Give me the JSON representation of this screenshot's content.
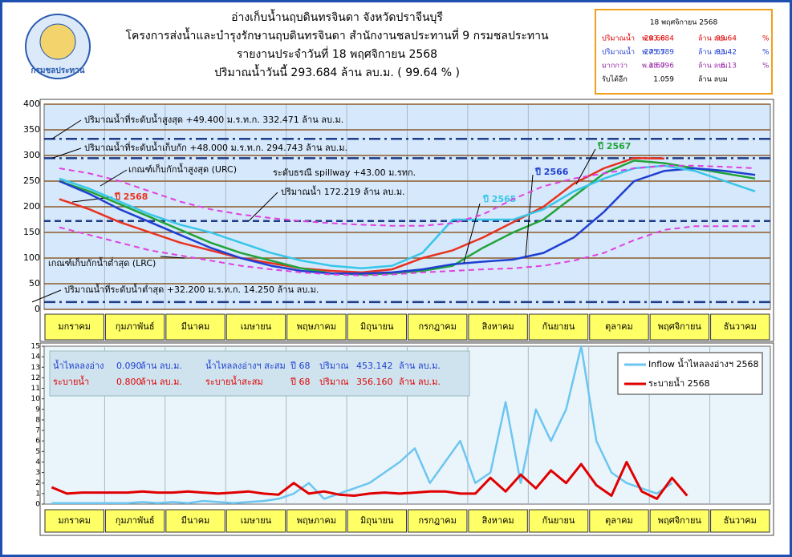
{
  "header": {
    "logo_text": "กรมชลประทาน",
    "title": "อ่างเก็บน้ำนฤบดินทรจินดา จังหวัดปราจีนบุรี",
    "subtitle": "โครงการส่งน้ำและบำรุงรักษานฤบดินทรจินดา สำนักงานชลประทานที่ 9 กรมชลประทาน",
    "report_date": "รายงานประจำวันที่    18 พฤศจิกายน 2568",
    "today_volume": "ปริมาณน้ำวันนี้    293.684  ล้าน ลบ.ม.  ( 99.64 % )"
  },
  "info_box": {
    "date": "18 พฤศจิกายน 2568",
    "rows": [
      [
        "ปริมาณน้ำ",
        "พ.ศ.68",
        "293.684",
        "ล้าน ลบม",
        "99.64",
        "%"
      ],
      [
        "ปริมาณน้ำ",
        "พ.ศ.67",
        "275.589",
        "ล้าน ลบม",
        "93.42",
        "%"
      ],
      [
        "มากกว่า",
        "พ.ศ.67",
        "18.096",
        "ล้าน ลบม",
        "6.13",
        "%"
      ],
      [
        "รับได้อีก",
        "",
        "1.059",
        "ล้าน ลบม",
        "",
        ""
      ]
    ],
    "row_colors": [
      "#e00000",
      "#1f3fd1",
      "#9a2aa8",
      "#000000"
    ]
  },
  "chart_data": [
    {
      "type": "line",
      "categories": [
        "มกราคม",
        null,
        "กุมภาพันธ์",
        null,
        "มีนาคม",
        null,
        "เมษายน",
        null,
        "พฤษภาคม",
        null,
        "มิถุนายน",
        null,
        "กรกฎาคม",
        null,
        "สิงหาคม",
        null,
        "กันยายน",
        null,
        "ตุลาคม",
        null,
        "พฤศจิกายน",
        null,
        "ธันวาคม",
        null
      ],
      "ylim": [
        0,
        400
      ],
      "yticks": [
        0,
        50,
        100,
        150,
        200,
        250,
        300,
        350,
        400
      ],
      "grid": true,
      "grid_color": "#8b5a2b",
      "series": [
        {
          "name": "ปี 2568",
          "color": "#e8321e",
          "values": [
            215,
            195,
            170,
            150,
            130,
            115,
            100,
            90,
            80,
            75,
            72,
            78,
            100,
            115,
            140,
            170,
            200,
            245,
            275,
            295,
            294,
            null,
            null,
            null
          ]
        },
        {
          "name": "ปี 2567",
          "color": "#22a33a",
          "values": [
            250,
            230,
            205,
            180,
            155,
            130,
            110,
            95,
            80,
            70,
            68,
            70,
            75,
            85,
            120,
            150,
            175,
            220,
            265,
            290,
            285,
            275,
            265,
            255
          ]
        },
        {
          "name": "ปี 2566",
          "color": "#1f3fd1",
          "values": [
            250,
            225,
            195,
            170,
            145,
            120,
            100,
            85,
            75,
            70,
            70,
            72,
            78,
            88,
            93,
            97,
            110,
            140,
            190,
            250,
            270,
            275,
            270,
            262
          ]
        },
        {
          "name": "ปี 2565",
          "color": "#37c6e8",
          "values": [
            255,
            235,
            210,
            185,
            165,
            150,
            130,
            110,
            95,
            85,
            80,
            85,
            110,
            175,
            175,
            175,
            195,
            230,
            255,
            275,
            280,
            270,
            250,
            230
          ]
        },
        {
          "name": "เกณฑ์เก็บกักน้ำสูงสุด (URC)",
          "color": "#e040e0",
          "dashed": true,
          "values": [
            275,
            265,
            250,
            230,
            210,
            195,
            185,
            178,
            172,
            168,
            165,
            163,
            163,
            168,
            185,
            215,
            240,
            255,
            265,
            275,
            280,
            280,
            278,
            275
          ]
        },
        {
          "name": "เกณฑ์เก็บกักน้ำต่ำสุด (LRC)",
          "color": "#e040e0",
          "dashed": true,
          "values": [
            160,
            145,
            130,
            115,
            105,
            95,
            85,
            78,
            72,
            68,
            66,
            68,
            72,
            75,
            78,
            80,
            85,
            95,
            110,
            135,
            155,
            162,
            162,
            162
          ]
        }
      ],
      "reference_lines": [
        {
          "value": 332.471,
          "label": "ปริมาณน้ำที่ระดับน้ำสูงสุด +49.400 ม.ร.ท.ก. 332.471 ล้าน ลบ.ม.",
          "style": "dashdot"
        },
        {
          "value": 294.743,
          "label": "ปริมาณน้ำที่ระดับน้ำเก็บกัก +48.000 ม.ร.ท.ก. 294.743 ล้าน ลบ.ม.",
          "style": "dashdot"
        },
        {
          "value": 172.219,
          "label": "ปริมาณน้ำ 172.219 ล้าน ลบ.ม.",
          "style": "dashed"
        },
        {
          "value": 14.25,
          "label": "ปริมาณน้ำที่ระดับน้ำต่ำสุด +32.200 ม.ร.ท.ก. 14.250 ล้าน ลบ.ม.",
          "style": "dashdot"
        }
      ],
      "ref_color": "#1f3c88",
      "annotations": [
        "ระดับธรณี spillway +43.00 ม.รทก."
      ]
    },
    {
      "type": "line",
      "categories": [
        "มกราคม",
        null,
        null,
        null,
        "กุมภาพันธ์",
        null,
        null,
        null,
        "มีนาคม",
        null,
        null,
        null,
        "เมษายน",
        null,
        null,
        null,
        "พฤษภาคม",
        null,
        null,
        null,
        "มิถุนายน",
        null,
        null,
        null,
        "กรกฎาคม",
        null,
        null,
        null,
        "สิงหาคม",
        null,
        null,
        null,
        "กันยายน",
        null,
        null,
        null,
        "ตุลาคม",
        null,
        null,
        null,
        "พฤศจิกายน",
        null,
        null,
        null,
        "ธันวาคม",
        null,
        null,
        null
      ],
      "ylim": [
        0,
        15
      ],
      "yticks": [
        0,
        1,
        2,
        3,
        4,
        5,
        6,
        7,
        8,
        9,
        10,
        11,
        12,
        13,
        14,
        15
      ],
      "grid": false,
      "legend": "upper right",
      "series": [
        {
          "name": "Inflow น้ำไหลลงอ่างฯ 2568",
          "color": "#6cc6f0",
          "width": 2.5,
          "values": [
            0.1,
            0.1,
            0.1,
            0.1,
            0.1,
            0.1,
            0.2,
            0.1,
            0.2,
            0.1,
            0.3,
            0.2,
            0.1,
            0.2,
            0.3,
            0.5,
            1,
            2,
            0.5,
            1,
            1.5,
            2,
            3,
            4,
            5.3,
            2,
            4,
            6,
            2,
            3,
            9.7,
            2,
            9,
            6,
            9,
            15,
            6,
            3,
            2,
            1.5,
            1,
            2,
            null,
            null,
            null,
            null,
            null,
            null
          ]
        },
        {
          "name": "ระบายน้ำ 2568",
          "color": "#e00000",
          "width": 3,
          "values": [
            1.6,
            1,
            1.1,
            1.1,
            1.1,
            1.1,
            1.2,
            1.1,
            1.1,
            1.2,
            1.1,
            1,
            1.1,
            1.2,
            1,
            0.9,
            2,
            1,
            1.2,
            0.9,
            0.8,
            1,
            1.1,
            1,
            1.1,
            1.2,
            1.2,
            1,
            1,
            2.5,
            1.2,
            2.8,
            1.5,
            3.2,
            2,
            3.8,
            1.8,
            0.8,
            4,
            1.2,
            0.5,
            2.5,
            0.8,
            null,
            null,
            null,
            null,
            null
          ]
        }
      ],
      "summary": [
        [
          "น้ำไหลลงอ่าง",
          "0.090",
          "ล้าน ลบ.ม.",
          "น้ำไหลลงอ่างฯ สะสม",
          "ปี 68",
          "ปริมาณ",
          "453.142",
          "ล้าน ลบ.ม."
        ],
        [
          "ระบายน้ำ",
          "0.800",
          "ล้าน ลบ.ม.",
          "ระบายน้ำสะสม",
          "ปี 68",
          "ปริมาณ",
          "356.160",
          "ล้าน ลบ.ม."
        ]
      ]
    }
  ]
}
